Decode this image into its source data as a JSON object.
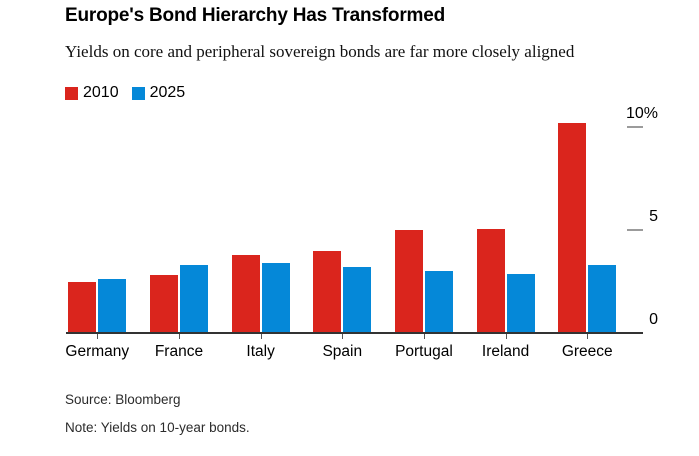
{
  "chart_data": {
    "type": "bar",
    "title": "Europe's Bond Hierarchy Has Transformed",
    "subtitle": "Yields on core and peripheral sovereign bonds are far more closely aligned",
    "categories": [
      "Germany",
      "France",
      "Italy",
      "Spain",
      "Portugal",
      "Ireland",
      "Greece"
    ],
    "series": [
      {
        "name": "2010",
        "color": "#da251d",
        "values": [
          2.5,
          2.8,
          3.8,
          4.0,
          5.0,
          5.05,
          10.2
        ]
      },
      {
        "name": "2025",
        "color": "#0588d8",
        "values": [
          2.6,
          3.3,
          3.4,
          3.2,
          3.0,
          2.85,
          3.3
        ]
      }
    ],
    "ylim": [
      0,
      10.5
    ],
    "yticks": [
      {
        "value": 0,
        "label": "0"
      },
      {
        "value": 5,
        "label": "5"
      },
      {
        "value": 10,
        "label": "10%"
      }
    ],
    "grid": false,
    "legend_position": "top-left",
    "source": "Source: Bloomberg",
    "note": "Note: Yields on 10-year bonds."
  }
}
